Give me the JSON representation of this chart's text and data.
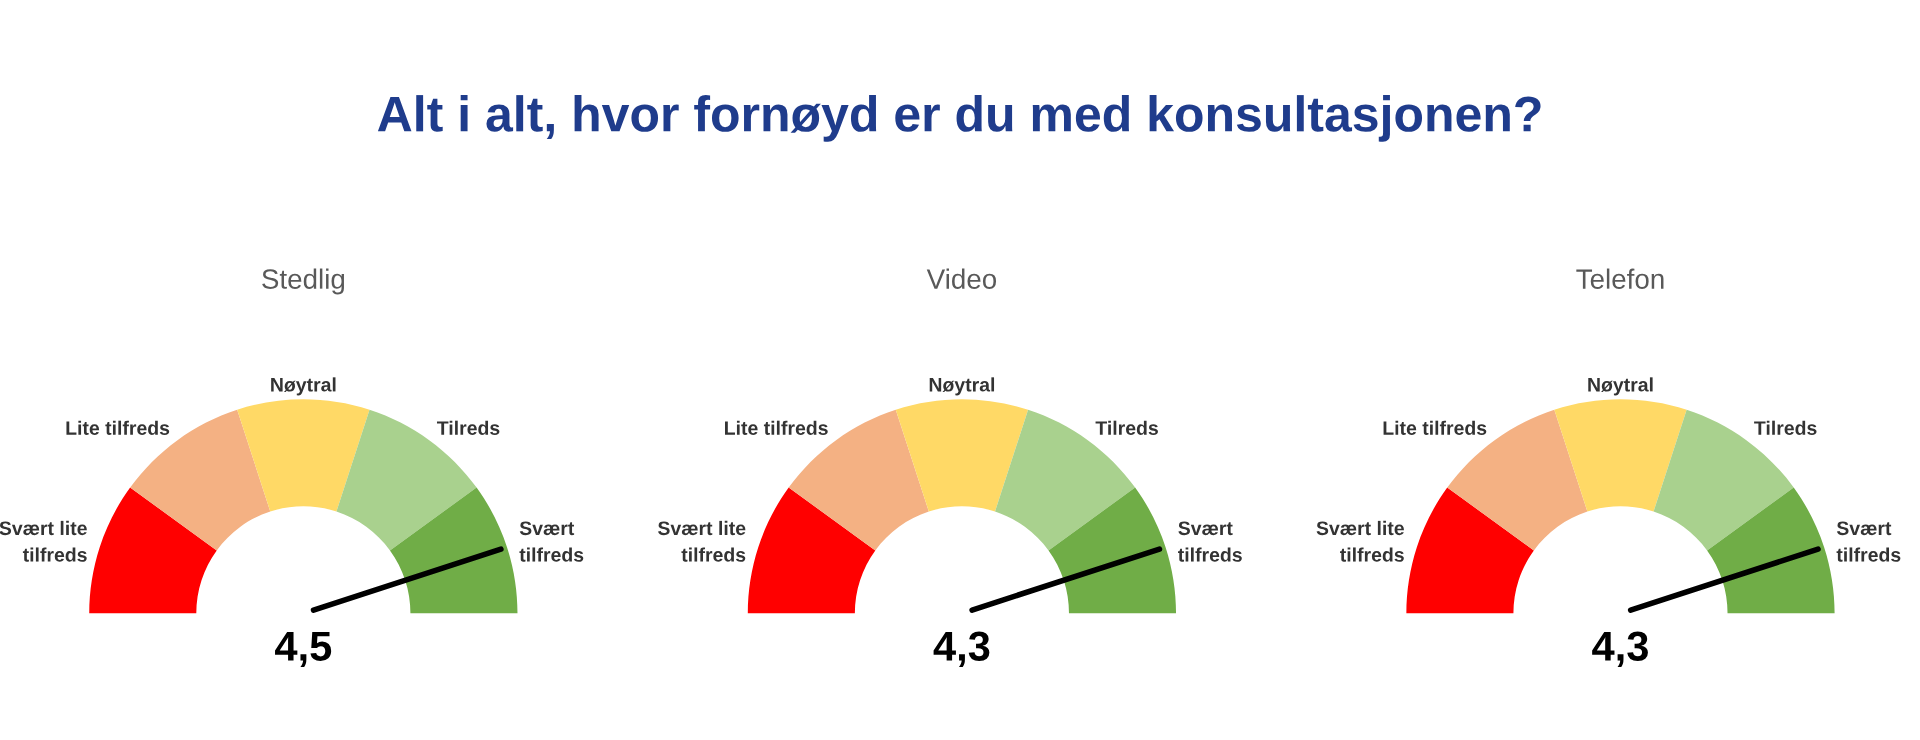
{
  "chart_data": [
    {
      "type": "donut",
      "title": "Alt i alt, hvor fornøyd er du med konsultasjonen?",
      "subtitle": "Stedlig",
      "categories": [
        "Svært lite\ntilfreds",
        "Lite tilfreds",
        "Nøytral",
        "Tilreds",
        "Svært\ntilfreds"
      ],
      "values": [
        20,
        20,
        20,
        20,
        20
      ],
      "colors": [
        "#ff0000",
        "#f4b183",
        "#ffd966",
        "#a9d18e",
        "#70ad47"
      ],
      "needle": "Svært\ntilfreds",
      "annotations": [
        "4,5"
      ]
    },
    {
      "type": "donut",
      "subtitle": "Video",
      "categories": [
        "Svært lite\ntilfreds",
        "Lite tilfreds",
        "Nøytral",
        "Tilreds",
        "Svært\ntilfreds"
      ],
      "values": [
        20,
        20,
        20,
        20,
        20
      ],
      "colors": [
        "#ff0000",
        "#f4b183",
        "#ffd966",
        "#a9d18e",
        "#70ad47"
      ],
      "needle": "Svært\ntilfreds",
      "annotations": [
        "4,3"
      ]
    },
    {
      "type": "donut",
      "subtitle": "Telefon",
      "categories": [
        "Svært lite\ntilfreds",
        "Lite tilfreds",
        "Nøytral",
        "Tilreds",
        "Svært\ntilfreds"
      ],
      "values": [
        20,
        20,
        20,
        20,
        20
      ],
      "colors": [
        "#ff0000",
        "#f4b183",
        "#ffd966",
        "#a9d18e",
        "#70ad47"
      ],
      "needle": "Svært\ntilfreds",
      "annotations": [
        "4,3"
      ]
    }
  ]
}
